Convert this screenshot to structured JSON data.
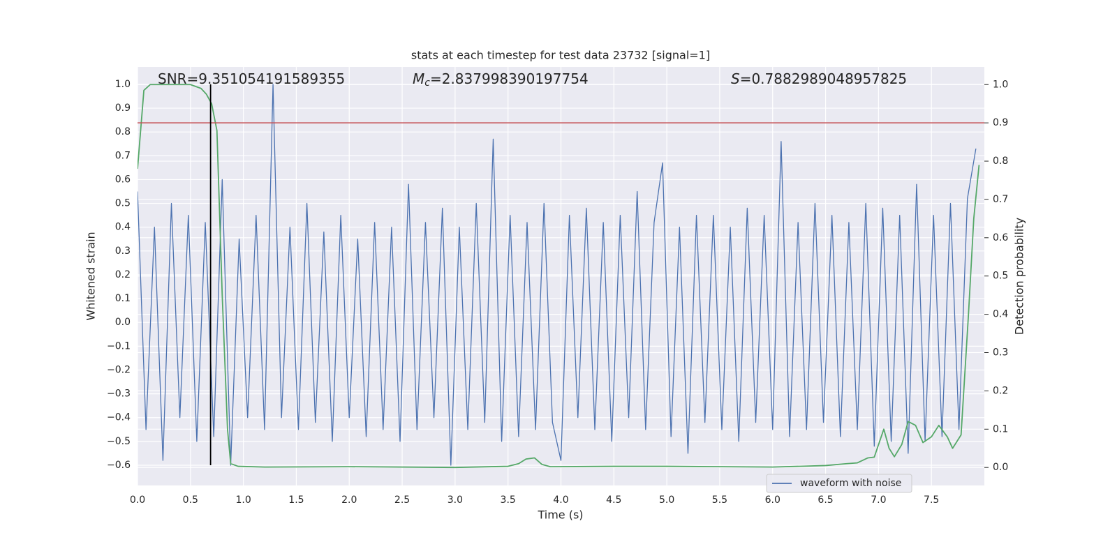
{
  "chart_data": {
    "type": "line",
    "title": "stats at each timestep for test data 23732 [signal=1]",
    "xlabel": "Time (s)",
    "ylabel": "Whitened strain",
    "y2label": "Detection probability",
    "annotations": [
      {
        "text": "SNR=9.351054191589355"
      },
      {
        "symbol": "M",
        "subscript": "c",
        "text": "=2.837998390197754"
      },
      {
        "symbol": "S",
        "text": "=0.7882989048957825"
      }
    ],
    "xlim": [
      0,
      8.0
    ],
    "ylim": [
      -0.685,
      1.073
    ],
    "y2lim": [
      -0.047,
      1.046
    ],
    "xticks": [
      {
        "value": 0,
        "label": "0.0"
      },
      {
        "value": 0.5,
        "label": "0.5"
      },
      {
        "value": 1,
        "label": "1.0"
      },
      {
        "value": 1.5,
        "label": "1.5"
      },
      {
        "value": 2,
        "label": "2.0"
      },
      {
        "value": 2.5,
        "label": "2.5"
      },
      {
        "value": 3,
        "label": "3.0"
      },
      {
        "value": 3.5,
        "label": "3.5"
      },
      {
        "value": 4,
        "label": "4.0"
      },
      {
        "value": 4.5,
        "label": "4.5"
      },
      {
        "value": 5,
        "label": "5.0"
      },
      {
        "value": 5.5,
        "label": "5.5"
      },
      {
        "value": 6,
        "label": "6.0"
      },
      {
        "value": 6.5,
        "label": "6.5"
      },
      {
        "value": 7,
        "label": "7.0"
      },
      {
        "value": 7.5,
        "label": "7.5"
      }
    ],
    "yticks": [
      {
        "value": -0.6,
        "label": "−0.6"
      },
      {
        "value": -0.5,
        "label": "−0.5"
      },
      {
        "value": -0.4,
        "label": "−0.4"
      },
      {
        "value": -0.3,
        "label": "−0.3"
      },
      {
        "value": -0.2,
        "label": "−0.2"
      },
      {
        "value": -0.1,
        "label": "−0.1"
      },
      {
        "value": 0,
        "label": "0.0"
      },
      {
        "value": 0.1,
        "label": "0.1"
      },
      {
        "value": 0.2,
        "label": "0.2"
      },
      {
        "value": 0.3,
        "label": "0.3"
      },
      {
        "value": 0.4,
        "label": "0.4"
      },
      {
        "value": 0.5,
        "label": "0.5"
      },
      {
        "value": 0.6,
        "label": "0.6"
      },
      {
        "value": 0.7,
        "label": "0.7"
      },
      {
        "value": 0.8,
        "label": "0.8"
      },
      {
        "value": 0.9,
        "label": "0.9"
      },
      {
        "value": 1,
        "label": "1.0"
      }
    ],
    "y2ticks": [
      {
        "value": 0,
        "label": "0.0"
      },
      {
        "value": 0.1,
        "label": "0.1"
      },
      {
        "value": 0.2,
        "label": "0.2"
      },
      {
        "value": 0.3,
        "label": "0.3"
      },
      {
        "value": 0.4,
        "label": "0.4"
      },
      {
        "value": 0.5,
        "label": "0.5"
      },
      {
        "value": 0.6,
        "label": "0.6"
      },
      {
        "value": 0.7,
        "label": "0.7"
      },
      {
        "value": 0.8,
        "label": "0.8"
      },
      {
        "value": 0.9,
        "label": "0.9"
      },
      {
        "value": 1,
        "label": "1.0"
      }
    ],
    "grid": true,
    "legend": "lower right",
    "threshold": {
      "value": 0.9,
      "axis": "y2",
      "color": "#c44e52"
    },
    "marker_x": {
      "value": 0.69,
      "color": "#000000"
    },
    "series": [
      {
        "name": "waveform with noise",
        "color": "#4c72b0",
        "x": [
          0,
          0.08,
          0.16,
          0.24,
          0.32,
          0.4,
          0.48,
          0.56,
          0.64,
          0.72,
          0.8,
          0.88,
          0.96,
          1.04,
          1.12,
          1.2,
          1.28,
          1.36,
          1.44,
          1.52,
          1.6,
          1.68,
          1.76,
          1.84,
          1.92,
          2,
          2.08,
          2.16,
          2.24,
          2.32,
          2.4,
          2.48,
          2.56,
          2.64,
          2.72,
          2.8,
          2.88,
          2.96,
          3.04,
          3.12,
          3.2,
          3.28,
          3.36,
          3.44,
          3.52,
          3.6,
          3.68,
          3.76,
          3.84,
          3.92,
          4,
          4.08,
          4.16,
          4.24,
          4.32,
          4.4,
          4.48,
          4.56,
          4.64,
          4.72,
          4.8,
          4.88,
          4.96,
          5.04,
          5.12,
          5.2,
          5.28,
          5.36,
          5.44,
          5.52,
          5.6,
          5.68,
          5.76,
          5.84,
          5.92,
          6,
          6.08,
          6.16,
          6.24,
          6.32,
          6.4,
          6.48,
          6.56,
          6.64,
          6.72,
          6.8,
          6.88,
          6.96,
          7.04,
          7.12,
          7.2,
          7.28,
          7.36,
          7.44,
          7.52,
          7.6,
          7.68,
          7.76,
          7.84,
          7.92
        ],
        "values": [
          0.55,
          -0.45,
          0.4,
          -0.58,
          0.5,
          -0.4,
          0.45,
          -0.5,
          0.42,
          -0.48,
          0.6,
          -0.6,
          0.35,
          -0.4,
          0.45,
          -0.45,
          1.0,
          -0.4,
          0.4,
          -0.45,
          0.5,
          -0.42,
          0.38,
          -0.5,
          0.45,
          -0.4,
          0.35,
          -0.48,
          0.42,
          -0.45,
          0.4,
          -0.5,
          0.58,
          -0.45,
          0.42,
          -0.4,
          0.48,
          -0.6,
          0.4,
          -0.45,
          0.5,
          -0.42,
          0.77,
          -0.5,
          0.45,
          -0.48,
          0.42,
          -0.45,
          0.5,
          -0.42,
          -0.58,
          0.45,
          -0.4,
          0.48,
          -0.45,
          0.42,
          -0.5,
          0.45,
          -0.4,
          0.55,
          -0.45,
          0.42,
          0.67,
          -0.48,
          0.4,
          -0.55,
          0.45,
          -0.42,
          0.45,
          -0.45,
          0.4,
          -0.5,
          0.48,
          -0.42,
          0.45,
          -0.45,
          0.76,
          -0.48,
          0.42,
          -0.45,
          0.5,
          -0.42,
          0.45,
          -0.48,
          0.42,
          -0.45,
          0.5,
          -0.52,
          0.48,
          -0.5,
          0.45,
          -0.55,
          0.58,
          -0.5,
          0.45,
          -0.48,
          0.5,
          -0.45,
          0.52,
          0.73
        ]
      },
      {
        "color": "#55a868",
        "axis": "y2",
        "x": [
          0,
          0.06,
          0.12,
          0.5,
          0.6,
          0.65,
          0.7,
          0.75,
          0.8,
          0.85,
          0.88,
          0.95,
          1.2,
          2,
          3,
          3.5,
          3.6,
          3.67,
          3.75,
          3.82,
          3.9,
          4.5,
          5,
          6,
          6.5,
          6.7,
          6.8,
          6.9,
          6.96,
          7.05,
          7.1,
          7.15,
          7.22,
          7.28,
          7.35,
          7.42,
          7.5,
          7.57,
          7.65,
          7.7,
          7.78,
          7.85,
          7.9,
          7.95
        ],
        "values": [
          0.78,
          0.985,
          1.0,
          1.0,
          0.99,
          0.975,
          0.95,
          0.88,
          0.45,
          0.1,
          0.01,
          0.003,
          0.001,
          0.002,
          0.0,
          0.003,
          0.01,
          0.022,
          0.025,
          0.008,
          0.002,
          0.003,
          0.003,
          0.001,
          0.005,
          0.01,
          0.012,
          0.025,
          0.027,
          0.1,
          0.05,
          0.028,
          0.06,
          0.12,
          0.11,
          0.065,
          0.08,
          0.11,
          0.08,
          0.05,
          0.085,
          0.4,
          0.65,
          0.79
        ]
      }
    ]
  }
}
